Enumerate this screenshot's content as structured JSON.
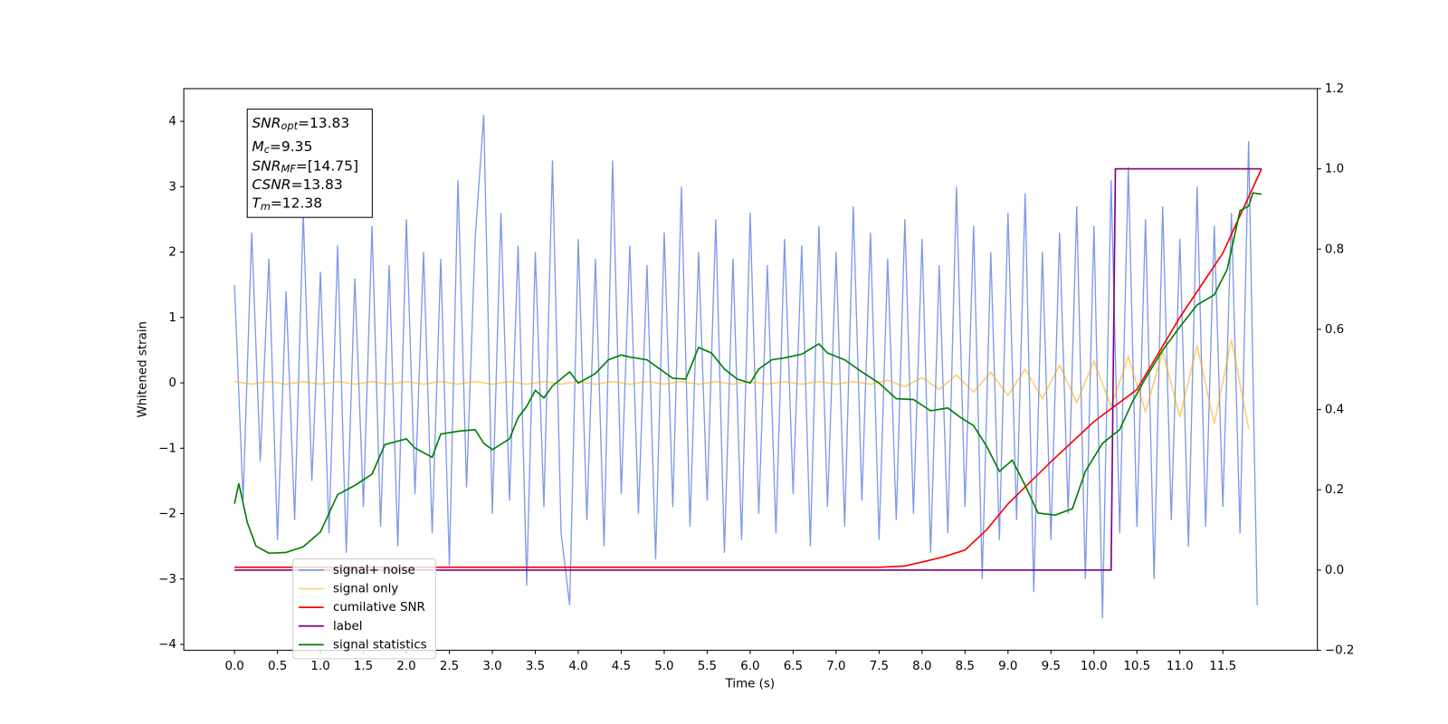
{
  "chart_data": {
    "type": "line",
    "xlabel": "Time (s)",
    "ylabel": "Whitened strain",
    "xlim": [
      -0.59,
      12.6
    ],
    "ylim": [
      -4.09,
      4.5
    ],
    "y2lim": [
      -0.2,
      1.2
    ],
    "xticks": [
      {
        "value": 0,
        "label": "0.0"
      },
      0.5,
      {
        "value": 1,
        "label": "1.0"
      },
      1.5,
      {
        "value": 2,
        "label": "2.0"
      },
      2.5,
      {
        "value": 3,
        "label": "3.0"
      },
      3.5,
      {
        "value": 4,
        "label": "4.0"
      },
      4.5,
      {
        "value": 5,
        "label": "5.0"
      },
      5.5,
      {
        "value": 6,
        "label": "6.0"
      },
      6.5,
      {
        "value": 7,
        "label": "7.0"
      },
      7.5,
      {
        "value": 8,
        "label": "8.0"
      },
      8.5,
      {
        "value": 9,
        "label": "9.0"
      },
      9.5,
      {
        "value": 10,
        "label": "10.0"
      },
      10.5,
      {
        "value": 11,
        "label": "11.0"
      },
      11.5
    ],
    "yticks": [
      {
        "value": -4,
        "label": "−4"
      },
      {
        "value": -3,
        "label": "−3"
      },
      {
        "value": -2,
        "label": "−2"
      },
      {
        "value": -1,
        "label": "−1"
      },
      0,
      1,
      2,
      3,
      4
    ],
    "y2ticks": [
      {
        "value": -0.2,
        "label": "−0.2"
      },
      {
        "value": 0,
        "label": "0.0"
      },
      0.2,
      0.4,
      0.6,
      0.8,
      {
        "value": 1,
        "label": "1.0"
      },
      1.2
    ],
    "legend_loc": "lower left",
    "annotation": [
      {
        "symbol": "SNR",
        "subscript": "opt",
        "text": "=13.83"
      },
      {
        "symbol": "M",
        "subscript": "c",
        "text": "=9.35"
      },
      {
        "symbol": "SNR",
        "subscript": "MF",
        "text": "=[14.75]"
      },
      {
        "symbol": "CSNR",
        "subscript": null,
        "text": "=13.83"
      },
      {
        "symbol": "T",
        "subscript": "m",
        "text": "=12.38"
      }
    ],
    "series": [
      {
        "name": "signal+ noise",
        "color": "#7793e8",
        "x": [
          0,
          0.1,
          0.2,
          0.3,
          0.4,
          0.5,
          0.6,
          0.7,
          0.8,
          0.9,
          1,
          1.1,
          1.2,
          1.3,
          1.4,
          1.5,
          1.6,
          1.7,
          1.8,
          1.9,
          2,
          2.1,
          2.2,
          2.3,
          2.4,
          2.5,
          2.6,
          2.7,
          2.8,
          2.9,
          3,
          3.1,
          3.2,
          3.3,
          3.4,
          3.5,
          3.6,
          3.7,
          3.8,
          3.9,
          4,
          4.1,
          4.2,
          4.3,
          4.4,
          4.5,
          4.6,
          4.7,
          4.8,
          4.9,
          5,
          5.1,
          5.2,
          5.3,
          5.4,
          5.5,
          5.6,
          5.7,
          5.8,
          5.9,
          6,
          6.1,
          6.2,
          6.3,
          6.4,
          6.5,
          6.6,
          6.7,
          6.8,
          6.9,
          7,
          7.1,
          7.2,
          7.3,
          7.4,
          7.5,
          7.6,
          7.7,
          7.8,
          7.9,
          8,
          8.1,
          8.2,
          8.3,
          8.4,
          8.5,
          8.6,
          8.7,
          8.8,
          8.9,
          9,
          9.1,
          9.2,
          9.3,
          9.4,
          9.5,
          9.6,
          9.7,
          9.8,
          9.9,
          10,
          10.1,
          10.2,
          10.3,
          10.4,
          10.5,
          10.6,
          10.7,
          10.8,
          10.9,
          11,
          11.1,
          11.2,
          11.3,
          11.4,
          11.5,
          11.6,
          11.7,
          11.8,
          11.9
        ],
        "values": [
          1.5,
          -1.8,
          2.3,
          -1.2,
          1.9,
          -2.4,
          1.4,
          -2.1,
          2.6,
          -1.5,
          1.7,
          -2.3,
          2.1,
          -2.6,
          1.6,
          -1.9,
          2.4,
          -2.2,
          1.8,
          -2.5,
          2.5,
          -1.7,
          2.0,
          -2.3,
          1.9,
          -2.8,
          3.1,
          -1.6,
          2.2,
          4.1,
          -2.0,
          2.6,
          -1.8,
          2.1,
          -3.1,
          2.0,
          -1.9,
          3.4,
          -2.3,
          -3.4,
          2.2,
          -2.1,
          1.9,
          -2.5,
          3.4,
          -1.7,
          2.1,
          -2.0,
          1.8,
          -2.7,
          2.3,
          -1.9,
          3.0,
          -2.2,
          2.0,
          -1.8,
          2.5,
          -2.6,
          1.9,
          -2.4,
          2.6,
          -2.0,
          1.8,
          -2.3,
          2.2,
          -1.7,
          2.1,
          -2.5,
          2.4,
          -1.9,
          2.0,
          -2.2,
          2.7,
          -1.8,
          2.3,
          -2.4,
          1.9,
          -2.1,
          2.5,
          -2.0,
          2.2,
          -2.6,
          1.8,
          -2.3,
          3.0,
          -1.9,
          2.4,
          -3.0,
          2.0,
          -2.4,
          2.6,
          -2.1,
          2.9,
          -3.2,
          2.0,
          -2.4,
          2.3,
          -2.0,
          2.7,
          -3.0,
          2.4,
          -3.6,
          3.1,
          -2.3,
          3.3,
          -2.2,
          2.5,
          -3.0,
          2.7,
          -2.1,
          2.2,
          -2.5,
          3.0,
          -2.2,
          2.4,
          -1.9,
          2.6,
          -2.3,
          3.7,
          -3.4
        ]
      },
      {
        "name": "signal only",
        "color": "#ffa500",
        "x": [
          0,
          0.2,
          0.4,
          0.6,
          0.8,
          1,
          1.2,
          1.4,
          1.6,
          1.8,
          2,
          2.2,
          2.4,
          2.6,
          2.8,
          3,
          3.2,
          3.4,
          3.6,
          3.8,
          4,
          4.2,
          4.4,
          4.6,
          4.8,
          5,
          5.2,
          5.4,
          5.6,
          5.8,
          6,
          6.2,
          6.4,
          6.6,
          6.8,
          7,
          7.2,
          7.4,
          7.6,
          7.8,
          8,
          8.2,
          8.4,
          8.6,
          8.8,
          9,
          9.2,
          9.4,
          9.6,
          9.8,
          10,
          10.2,
          10.4,
          10.6,
          10.8,
          11,
          11.2,
          11.4,
          11.6,
          11.8
        ],
        "values": [
          0.02,
          -0.02,
          0.02,
          -0.02,
          0.02,
          -0.02,
          0.02,
          -0.02,
          0.02,
          -0.02,
          0.02,
          -0.02,
          0.02,
          -0.02,
          0.02,
          -0.02,
          0.02,
          -0.02,
          0.02,
          -0.02,
          0.02,
          -0.02,
          0.02,
          -0.02,
          0.02,
          -0.02,
          0.02,
          -0.02,
          0.02,
          -0.02,
          0.02,
          -0.02,
          0.02,
          -0.02,
          0.02,
          -0.02,
          0.02,
          -0.02,
          0.04,
          -0.06,
          0.08,
          -0.1,
          0.12,
          -0.14,
          0.16,
          -0.19,
          0.21,
          -0.24,
          0.27,
          -0.3,
          0.33,
          -0.36,
          0.4,
          -0.44,
          0.48,
          -0.52,
          0.57,
          -0.62,
          0.66,
          -0.7
        ]
      },
      {
        "name": "cumilative SNR",
        "color": "#ff0000",
        "axis": "y2",
        "x": [
          0,
          7.5,
          7.8,
          8.0,
          8.25,
          8.5,
          8.75,
          9.0,
          9.5,
          10.0,
          10.5,
          11.0,
          11.5,
          11.95
        ],
        "values": [
          0.007,
          0.007,
          0.01,
          0.02,
          0.033,
          0.05,
          0.1,
          0.165,
          0.27,
          0.37,
          0.45,
          0.63,
          0.79,
          1.0
        ]
      },
      {
        "name": "label",
        "color": "#800080",
        "axis": "y2",
        "x": [
          0,
          10.2,
          10.25,
          11.95
        ],
        "values": [
          0,
          0,
          1,
          1
        ]
      },
      {
        "name": "signal statistics",
        "color": "#008000",
        "axis": "y2",
        "x": [
          0,
          0.05,
          0.15,
          0.25,
          0.4,
          0.6,
          0.8,
          1.0,
          1.2,
          1.4,
          1.6,
          1.75,
          2.0,
          2.1,
          2.3,
          2.4,
          2.6,
          2.8,
          2.9,
          3.0,
          3.2,
          3.3,
          3.4,
          3.5,
          3.6,
          3.7,
          3.9,
          4.0,
          4.2,
          4.35,
          4.5,
          4.6,
          4.8,
          4.95,
          5.1,
          5.25,
          5.4,
          5.55,
          5.7,
          5.85,
          6.0,
          6.1,
          6.25,
          6.4,
          6.6,
          6.8,
          6.9,
          7.1,
          7.3,
          7.5,
          7.7,
          7.9,
          8.1,
          8.3,
          8.45,
          8.6,
          8.75,
          8.9,
          9.05,
          9.2,
          9.35,
          9.55,
          9.75,
          9.9,
          10.1,
          10.3,
          10.45,
          10.6,
          10.8,
          11.0,
          11.2,
          11.4,
          11.55,
          11.7,
          11.8,
          11.85,
          11.95
        ],
        "values": [
          0.165,
          0.216,
          0.118,
          0.06,
          0.042,
          0.044,
          0.058,
          0.095,
          0.188,
          0.211,
          0.239,
          0.313,
          0.327,
          0.304,
          0.281,
          0.339,
          0.346,
          0.35,
          0.316,
          0.3,
          0.327,
          0.38,
          0.408,
          0.448,
          0.429,
          0.459,
          0.494,
          0.466,
          0.49,
          0.524,
          0.536,
          0.531,
          0.524,
          0.501,
          0.478,
          0.476,
          0.555,
          0.541,
          0.501,
          0.476,
          0.466,
          0.501,
          0.524,
          0.529,
          0.538,
          0.564,
          0.541,
          0.524,
          0.494,
          0.466,
          0.427,
          0.425,
          0.397,
          0.404,
          0.38,
          0.36,
          0.309,
          0.246,
          0.274,
          0.211,
          0.142,
          0.137,
          0.153,
          0.246,
          0.316,
          0.35,
          0.42,
          0.478,
          0.548,
          0.606,
          0.661,
          0.686,
          0.749,
          0.896,
          0.907,
          0.94,
          0.937
        ]
      }
    ]
  }
}
